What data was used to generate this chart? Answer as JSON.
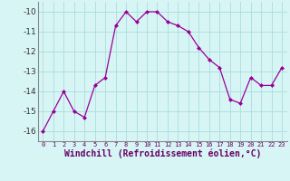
{
  "x": [
    0,
    1,
    2,
    3,
    4,
    5,
    6,
    7,
    8,
    9,
    10,
    11,
    12,
    13,
    14,
    15,
    16,
    17,
    18,
    19,
    20,
    21,
    22,
    23
  ],
  "y": [
    -16,
    -15,
    -14,
    -15,
    -15.3,
    -13.7,
    -13.3,
    -10.7,
    -10,
    -10.5,
    -10,
    -10,
    -10.5,
    -10.7,
    -11.0,
    -11.8,
    -12.4,
    -12.8,
    -14.4,
    -14.6,
    -13.3,
    -13.7,
    -13.7,
    -12.8
  ],
  "line_color": "#990099",
  "marker": "D",
  "marker_size": 2,
  "bg_color": "#d8f5f5",
  "grid_color": "#aadddd",
  "xlabel": "Windchill (Refroidissement éolien,°C)",
  "xlabel_fontsize": 7,
  "xtick_labels": [
    "0",
    "1",
    "2",
    "3",
    "4",
    "5",
    "6",
    "7",
    "8",
    "9",
    "10",
    "11",
    "12",
    "13",
    "14",
    "15",
    "16",
    "17",
    "18",
    "19",
    "20",
    "21",
    "22",
    "23"
  ],
  "ylim": [
    -16.5,
    -9.5
  ],
  "yticks": [
    -16,
    -15,
    -14,
    -13,
    -12,
    -11,
    -10
  ]
}
